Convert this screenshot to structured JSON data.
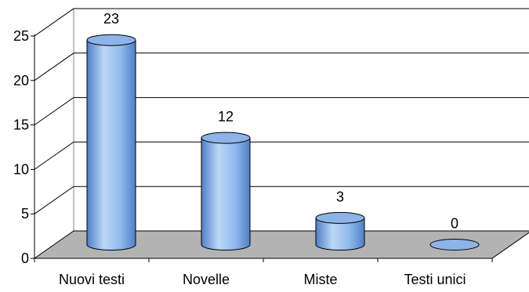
{
  "chart_data": {
    "type": "bar",
    "style": "3d-cylinder",
    "categories": [
      "Nuovi testi",
      "Novelle",
      "Miste",
      "Testi unici"
    ],
    "values": [
      23,
      12,
      3,
      0
    ],
    "data_labels": [
      "23",
      "12",
      "3",
      "0"
    ],
    "title": "",
    "xlabel": "",
    "ylabel": "",
    "ylim": [
      0,
      25
    ],
    "yticks": [
      0,
      5,
      10,
      15,
      20,
      25
    ],
    "ytick_labels": [
      "0",
      "5",
      "10",
      "15",
      "20",
      "25"
    ],
    "grid": true,
    "legend": "none",
    "colors": {
      "bar_light": "#bcd8f6",
      "bar_mid": "#8fb8ec",
      "bar_dark": "#4f7fc8",
      "bar_top": "#8db4e8",
      "bar_outline": "#000000",
      "back_wall": "#ffffff",
      "side_wall": "#ffffff",
      "floor": "#b3b3b3",
      "gridline": "#000000"
    }
  }
}
